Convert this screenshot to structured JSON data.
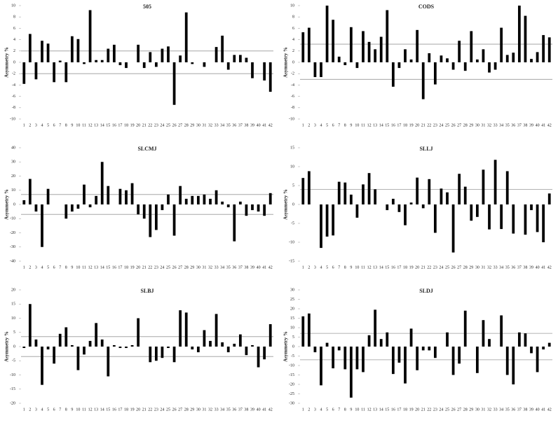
{
  "chart_data": [
    {
      "type": "bar",
      "title": "505",
      "y_label": "Asymmetry %",
      "color": "#000000",
      "reference_color": "#999999",
      "categories": [
        "1",
        "2",
        "3",
        "4",
        "5",
        "6",
        "7",
        "8",
        "9",
        "10",
        "11",
        "12",
        "13",
        "14",
        "15",
        "16",
        "17",
        "18",
        "19",
        "20",
        "21",
        "22",
        "23",
        "24",
        "25",
        "26",
        "27",
        "28",
        "29",
        "30",
        "31",
        "32",
        "33",
        "34",
        "35",
        "36",
        "37",
        "38",
        "39",
        "40",
        "41",
        "42"
      ],
      "values": [
        -3.8,
        5,
        -3,
        3.8,
        3.3,
        -3.5,
        0.3,
        -3.5,
        4.6,
        4.1,
        -0.3,
        9.2,
        0.4,
        0.4,
        2.4,
        3.1,
        -0.5,
        -1,
        0,
        3.1,
        -1,
        1.8,
        -0.8,
        2.4,
        2.8,
        -7.5,
        1.2,
        8.8,
        -0.3,
        0,
        -0.8,
        0,
        2.7,
        4.7,
        -1.3,
        1.3,
        1.3,
        0.8,
        -2.8,
        0,
        -3.2,
        -5.2
      ],
      "ylim": [
        -10,
        10
      ],
      "yticks": [
        -10,
        -8,
        -6,
        -4,
        -2,
        0,
        2,
        4,
        6,
        8,
        10
      ],
      "reference_lines": [
        2,
        -2
      ]
    },
    {
      "type": "bar",
      "title": "CODS",
      "y_label": "Asymmetry %",
      "color": "#000000",
      "reference_color": "#999999",
      "categories": [
        "1",
        "2",
        "3",
        "4",
        "5",
        "6",
        "7",
        "8",
        "9",
        "10",
        "11",
        "12",
        "13",
        "14",
        "15",
        "16",
        "17",
        "18",
        "19",
        "20",
        "21",
        "22",
        "23",
        "24",
        "25",
        "26",
        "27",
        "28",
        "29",
        "30",
        "31",
        "32",
        "33",
        "34",
        "35",
        "36",
        "37",
        "38",
        "39",
        "40",
        "41",
        "42"
      ],
      "values": [
        5.3,
        6.1,
        -2.6,
        -2.6,
        10,
        7.5,
        1,
        -0.5,
        6.2,
        -1,
        5.5,
        3.6,
        2.3,
        4.5,
        9.2,
        -4.3,
        -1,
        2.3,
        0.5,
        5.7,
        -6.5,
        1.6,
        -3.9,
        1.2,
        0.7,
        -1.3,
        3.8,
        -1.5,
        5.5,
        0.5,
        2.3,
        -1.8,
        -1.3,
        6.1,
        1.3,
        1.7,
        10,
        8.2,
        0.6,
        1.8,
        4.8,
        4.4
      ],
      "ylim": [
        -10,
        10
      ],
      "yticks": [
        -10,
        -8,
        -6,
        -4,
        -2,
        0,
        2,
        4,
        6,
        8,
        10
      ],
      "reference_lines": [
        3.2,
        -3
      ]
    },
    {
      "type": "bar",
      "title": "SLCMJ",
      "y_label": "Asymmetry %",
      "color": "#000000",
      "reference_color": "#999999",
      "categories": [
        "1",
        "2",
        "3",
        "4",
        "5",
        "6",
        "7",
        "8",
        "9",
        "10",
        "11",
        "12",
        "13",
        "14",
        "15",
        "16",
        "17",
        "18",
        "19",
        "20",
        "21",
        "22",
        "23",
        "24",
        "25",
        "26",
        "27",
        "28",
        "29",
        "30",
        "31",
        "32",
        "33",
        "34",
        "35",
        "36",
        "37",
        "38",
        "39",
        "40",
        "41",
        "42"
      ],
      "values": [
        3,
        18,
        -5,
        -30,
        11,
        0,
        0,
        -10,
        -5,
        -3,
        14,
        -2,
        6,
        30,
        13,
        0,
        11,
        10,
        15,
        -7,
        -10,
        -23,
        -18,
        -4,
        7,
        -22,
        13,
        4,
        6,
        6,
        7,
        4,
        10,
        2,
        -2,
        -26,
        2,
        -8,
        -4,
        -5,
        -8,
        8
      ],
      "ylim": [
        -40,
        40
      ],
      "yticks": [
        -40,
        -30,
        -20,
        -10,
        0,
        10,
        20,
        30,
        40
      ],
      "reference_lines": [
        7,
        -7
      ]
    },
    {
      "type": "bar",
      "title": "SLLJ",
      "y_label": "Asymmetry %",
      "color": "#000000",
      "reference_color": "#999999",
      "categories": [
        "1",
        "2",
        "3",
        "4",
        "5",
        "6",
        "7",
        "8",
        "9",
        "10",
        "11",
        "12",
        "13",
        "14",
        "15",
        "16",
        "17",
        "18",
        "19",
        "20",
        "21",
        "22",
        "23",
        "24",
        "25",
        "26",
        "27",
        "28",
        "29",
        "30",
        "31",
        "32",
        "33",
        "34",
        "35",
        "36",
        "37",
        "38",
        "39",
        "40",
        "41",
        "42"
      ],
      "values": [
        7,
        8.8,
        0,
        -11.5,
        -8.5,
        -8.2,
        6,
        5.8,
        2.6,
        -3.5,
        5.3,
        8.3,
        4,
        0,
        -1.5,
        1.5,
        -2,
        -5.5,
        0.5,
        7.1,
        -1,
        6.7,
        -7.5,
        4.2,
        3.2,
        -12.7,
        8.1,
        4.7,
        -4.3,
        -3.3,
        9.2,
        -6.6,
        11.8,
        -6.5,
        8.8,
        -7.7,
        0,
        -8,
        -1.5,
        -7.3,
        -10,
        2.9
      ],
      "ylim": [
        -15,
        15
      ],
      "yticks": [
        -15,
        -10,
        -5,
        0,
        5,
        10,
        15
      ],
      "reference_lines": [
        4
      ]
    },
    {
      "type": "bar",
      "title": "SLBJ",
      "y_label": "Asymmetry %",
      "color": "#000000",
      "reference_color": "#999999",
      "categories": [
        "1",
        "2",
        "3",
        "4",
        "5",
        "6",
        "7",
        "8",
        "9",
        "10",
        "11",
        "12",
        "13",
        "14",
        "15",
        "16",
        "17",
        "18",
        "19",
        "20",
        "21",
        "22",
        "23",
        "24",
        "25",
        "26",
        "27",
        "28",
        "29",
        "30",
        "31",
        "32",
        "33",
        "34",
        "35",
        "36",
        "37",
        "38",
        "39",
        "40",
        "41",
        "42"
      ],
      "values": [
        -0.5,
        15,
        2.5,
        -13.5,
        -1,
        -6,
        4.5,
        6.8,
        0.5,
        -8.3,
        -2.8,
        2,
        8.3,
        2.5,
        -10.5,
        0.5,
        -0.5,
        -0.5,
        0.5,
        10,
        0,
        -5.5,
        -5,
        -4,
        -0.5,
        -5.5,
        12.8,
        12,
        -1,
        -2,
        5.8,
        2,
        11.5,
        1.5,
        -2,
        1,
        4.3,
        -3,
        0.5,
        -7.3,
        -4.5,
        7.9
      ],
      "ylim": [
        -20,
        20
      ],
      "yticks": [
        -20,
        -15,
        -10,
        -5,
        0,
        5,
        10,
        15,
        20
      ],
      "reference_lines": [
        3.5,
        -3.5
      ]
    },
    {
      "type": "bar",
      "title": "SLDJ",
      "y_label": "Asymmetry %",
      "color": "#000000",
      "reference_color": "#999999",
      "categories": [
        "1",
        "2",
        "3",
        "4",
        "5",
        "6",
        "7",
        "8",
        "9",
        "10",
        "11",
        "12",
        "13",
        "14",
        "15",
        "16",
        "17",
        "18",
        "19",
        "20",
        "21",
        "22",
        "23",
        "24",
        "25",
        "26",
        "27",
        "28",
        "29",
        "30",
        "31",
        "32",
        "33",
        "34",
        "35",
        "36",
        "37",
        "38",
        "39",
        "40",
        "41",
        "42"
      ],
      "values": [
        16,
        17.5,
        -3,
        -20.5,
        2,
        -11.5,
        -2,
        -12,
        -27,
        -12,
        -13.5,
        6,
        19.5,
        4,
        7.5,
        -14.5,
        -8.5,
        -19.5,
        9.5,
        -12.5,
        -2,
        -2,
        -6,
        0,
        7.5,
        -15,
        -9,
        19,
        0,
        -14,
        14,
        4,
        0,
        16.5,
        -15,
        -20,
        7.5,
        7,
        -3.5,
        -13.5,
        -1.5,
        2
      ],
      "ylim": [
        -30,
        30
      ],
      "yticks": [
        -30,
        -25,
        -20,
        -15,
        -10,
        -5,
        0,
        5,
        10,
        15,
        20,
        25,
        30
      ],
      "reference_lines": [
        7,
        -7
      ]
    }
  ]
}
